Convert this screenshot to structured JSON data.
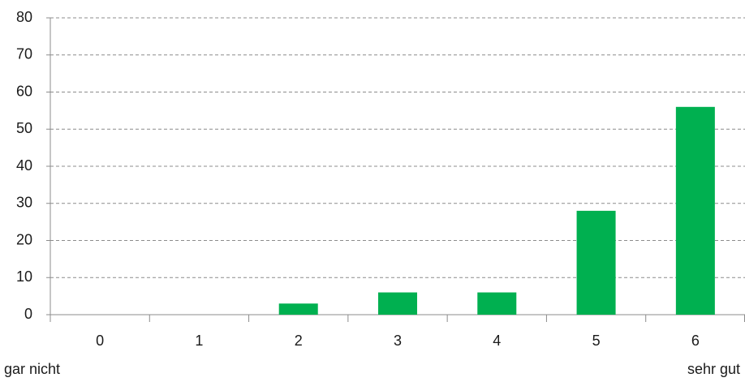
{
  "chart_data": {
    "type": "bar",
    "categories": [
      "0",
      "1",
      "2",
      "3",
      "4",
      "5",
      "6"
    ],
    "values": [
      0,
      0,
      3,
      6,
      6,
      28,
      56
    ],
    "x_end_labels": [
      "gar nicht",
      "sehr gut"
    ],
    "color": "#00b050",
    "ylim": [
      0,
      80
    ],
    "yticks": [
      0,
      10,
      20,
      30,
      40,
      50,
      60,
      70,
      80
    ],
    "grid": true
  }
}
